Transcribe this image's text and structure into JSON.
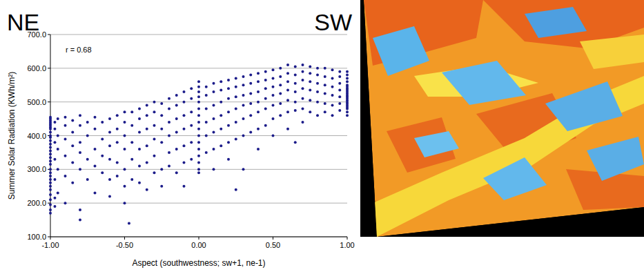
{
  "chart_data": {
    "type": "scatter",
    "annotations": [
      "r = 0.68",
      "NE",
      "SW"
    ],
    "x_label": "Aspect (southwestness; sw+1, ne-1)",
    "y_label": "Summer Solar Radiation (KWh/m²)",
    "color": "#1c1c8a",
    "marker": "circle",
    "grid": true,
    "xlim": [
      -1,
      1
    ],
    "ylim": [
      100,
      700
    ],
    "xticks": [
      {
        "value": -1,
        "label": "-1.00"
      },
      {
        "value": -0.5,
        "label": "-0.50"
      },
      {
        "value": 0,
        "label": "0.00"
      },
      {
        "value": 0.5,
        "label": "0.50"
      },
      {
        "value": 1,
        "label": "1.00"
      }
    ],
    "yticks": [
      {
        "value": 100,
        "label": "100.0"
      },
      {
        "value": 200,
        "label": "200.0"
      },
      {
        "value": 300,
        "label": "300.0"
      },
      {
        "value": 400,
        "label": "400.0"
      },
      {
        "value": 500,
        "label": "500.0"
      },
      {
        "value": 600,
        "label": "600.0"
      },
      {
        "value": 700,
        "label": "700.0"
      }
    ],
    "x": [
      -1,
      -1,
      -1,
      -1,
      -1,
      -1,
      -1,
      -1,
      -1,
      -1,
      -1,
      -1,
      -1,
      -1,
      -1,
      -1,
      -1,
      -1,
      -1,
      -1,
      -1,
      -1,
      -1,
      -1,
      -1,
      -1,
      -1,
      -1,
      -1,
      -1,
      -1,
      -0.97,
      -0.97,
      -0.97,
      -0.97,
      -0.97,
      -0.97,
      -0.97,
      -0.95,
      -0.95,
      -0.95,
      -0.95,
      -0.95,
      -0.9,
      -0.9,
      -0.9,
      -0.9,
      -0.9,
      -0.9,
      -0.85,
      -0.85,
      -0.85,
      -0.85,
      -0.85,
      -0.8,
      -0.8,
      -0.8,
      -0.8,
      -0.8,
      -0.8,
      -0.8,
      -0.75,
      -0.75,
      -0.75,
      -0.75,
      -0.7,
      -0.7,
      -0.7,
      -0.7,
      -0.7,
      -0.65,
      -0.65,
      -0.65,
      -0.65,
      -0.6,
      -0.6,
      -0.6,
      -0.6,
      -0.6,
      -0.6,
      -0.55,
      -0.55,
      -0.55,
      -0.55,
      -0.55,
      -0.5,
      -0.5,
      -0.5,
      -0.5,
      -0.5,
      -0.5,
      -0.5,
      -0.47,
      -0.45,
      -0.45,
      -0.45,
      -0.45,
      -0.45,
      -0.4,
      -0.4,
      -0.4,
      -0.4,
      -0.4,
      -0.4,
      -0.35,
      -0.35,
      -0.35,
      -0.35,
      -0.35,
      -0.35,
      -0.3,
      -0.3,
      -0.3,
      -0.3,
      -0.3,
      -0.3,
      -0.25,
      -0.25,
      -0.25,
      -0.25,
      -0.25,
      -0.25,
      -0.2,
      -0.2,
      -0.2,
      -0.2,
      -0.2,
      -0.2,
      -0.15,
      -0.15,
      -0.15,
      -0.15,
      -0.15,
      -0.15,
      -0.1,
      -0.1,
      -0.1,
      -0.1,
      -0.1,
      -0.1,
      -0.1,
      -0.05,
      -0.05,
      -0.05,
      -0.05,
      -0.05,
      -0.05,
      0,
      0,
      0,
      0,
      0,
      0,
      0,
      0,
      0,
      0,
      0,
      0,
      0,
      0,
      0,
      0,
      0.05,
      0.05,
      0.05,
      0.05,
      0.05,
      0.05,
      0.1,
      0.1,
      0.1,
      0.1,
      0.1,
      0.1,
      0.1,
      0.15,
      0.15,
      0.15,
      0.15,
      0.15,
      0.15,
      0.2,
      0.2,
      0.2,
      0.2,
      0.2,
      0.2,
      0.2,
      0.25,
      0.25,
      0.25,
      0.25,
      0.25,
      0.25,
      0.25,
      0.3,
      0.3,
      0.3,
      0.3,
      0.3,
      0.3,
      0.3,
      0.35,
      0.35,
      0.35,
      0.35,
      0.35,
      0.35,
      0.4,
      0.4,
      0.4,
      0.4,
      0.4,
      0.4,
      0.4,
      0.45,
      0.45,
      0.45,
      0.45,
      0.45,
      0.45,
      0.5,
      0.5,
      0.5,
      0.5,
      0.5,
      0.5,
      0.5,
      0.55,
      0.55,
      0.55,
      0.55,
      0.55,
      0.55,
      0.6,
      0.6,
      0.6,
      0.6,
      0.6,
      0.6,
      0.6,
      0.65,
      0.65,
      0.65,
      0.65,
      0.65,
      0.65,
      0.65,
      0.7,
      0.7,
      0.7,
      0.7,
      0.7,
      0.7,
      0.7,
      0.75,
      0.75,
      0.75,
      0.75,
      0.75,
      0.75,
      0.8,
      0.8,
      0.8,
      0.8,
      0.8,
      0.8,
      0.85,
      0.85,
      0.85,
      0.85,
      0.85,
      0.85,
      0.9,
      0.9,
      0.9,
      0.9,
      0.9,
      0.9,
      0.95,
      0.95,
      0.95,
      0.95,
      0.95,
      0.95,
      0.95,
      1,
      1,
      1,
      1,
      1,
      1,
      1,
      1,
      1,
      1,
      1,
      1,
      1,
      1,
      1,
      1,
      1,
      1,
      1,
      1,
      1
    ],
    "values": [
      455,
      450,
      445,
      440,
      435,
      430,
      425,
      420,
      410,
      400,
      395,
      385,
      375,
      365,
      355,
      345,
      335,
      325,
      315,
      300,
      290,
      280,
      270,
      260,
      250,
      240,
      225,
      210,
      195,
      180,
      170,
      440,
      420,
      380,
      330,
      270,
      215,
      190,
      450,
      400,
      360,
      300,
      230,
      455,
      430,
      390,
      340,
      280,
      200,
      445,
      410,
      370,
      320,
      260,
      460,
      430,
      380,
      350,
      300,
      180,
      150,
      440,
      400,
      330,
      270,
      455,
      420,
      360,
      310,
      230,
      440,
      390,
      340,
      290,
      450,
      410,
      370,
      330,
      270,
      220,
      460,
      420,
      380,
      320,
      280,
      470,
      440,
      400,
      360,
      300,
      250,
      200,
      140,
      470,
      430,
      380,
      330,
      270,
      480,
      450,
      410,
      360,
      310,
      260,
      490,
      460,
      420,
      370,
      320,
      240,
      500,
      470,
      430,
      390,
      340,
      290,
      495,
      460,
      420,
      380,
      300,
      250,
      510,
      480,
      440,
      400,
      350,
      310,
      520,
      490,
      450,
      410,
      360,
      290,
      530,
      500,
      460,
      420,
      370,
      320,
      250,
      540,
      510,
      470,
      430,
      380,
      330,
      560,
      545,
      530,
      515,
      500,
      480,
      460,
      440,
      420,
      400,
      380,
      360,
      340,
      320,
      300,
      290,
      545,
      520,
      480,
      440,
      400,
      350,
      555,
      530,
      490,
      450,
      410,
      360,
      300,
      560,
      535,
      500,
      460,
      420,
      370,
      565,
      540,
      510,
      470,
      430,
      380,
      330,
      570,
      545,
      515,
      480,
      440,
      390,
      240,
      575,
      550,
      520,
      490,
      450,
      400,
      300,
      580,
      555,
      525,
      495,
      460,
      410,
      585,
      560,
      530,
      500,
      470,
      420,
      360,
      590,
      565,
      540,
      510,
      480,
      430,
      595,
      570,
      545,
      520,
      490,
      450,
      400,
      600,
      575,
      550,
      525,
      495,
      460,
      610,
      585,
      560,
      535,
      505,
      470,
      420,
      605,
      580,
      555,
      530,
      500,
      475,
      380,
      610,
      590,
      565,
      540,
      510,
      480,
      440,
      605,
      585,
      560,
      535,
      505,
      470,
      600,
      580,
      555,
      530,
      500,
      460,
      600,
      575,
      550,
      525,
      495,
      470,
      595,
      570,
      545,
      520,
      490,
      460,
      590,
      575,
      555,
      535,
      515,
      495,
      475,
      590,
      580,
      570,
      560,
      550,
      545,
      540,
      535,
      530,
      525,
      520,
      515,
      510,
      505,
      500,
      495,
      490,
      485,
      480,
      470,
      460
    ]
  }
}
